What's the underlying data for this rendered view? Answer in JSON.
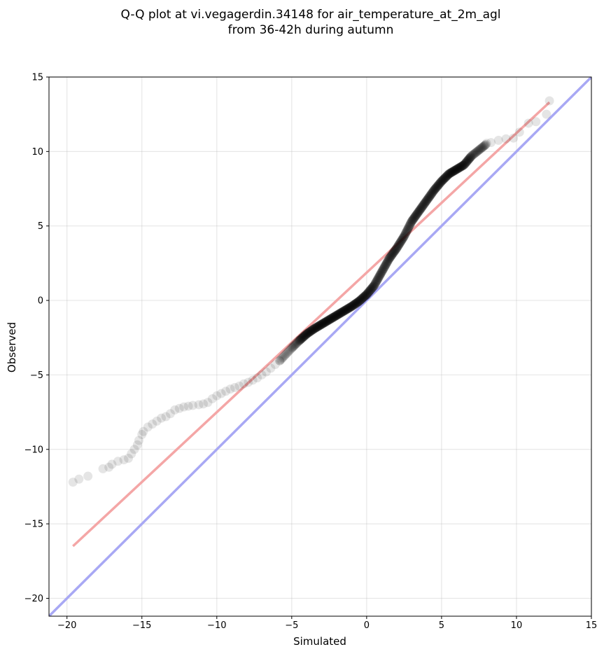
{
  "chart_data": {
    "type": "scatter",
    "title_line1": "Q-Q plot at vi.vegagerdin.34148 for air_temperature_at_2m_agl",
    "title_line2": "from 36-42h during autumn",
    "xlabel": "Simulated",
    "ylabel": "Observed",
    "xlim": [
      -21.2,
      15
    ],
    "ylim": [
      -21.2,
      15
    ],
    "xticks": [
      -20,
      -15,
      -10,
      -5,
      0,
      5,
      10,
      15
    ],
    "yticks": [
      -20,
      -15,
      -10,
      -5,
      0,
      5,
      10,
      15
    ],
    "xtick_labels": [
      "−20",
      "−15",
      "−10",
      "−5",
      "0",
      "5",
      "10",
      "15"
    ],
    "ytick_labels": [
      "−20",
      "−15",
      "−10",
      "−5",
      "0",
      "5",
      "10",
      "15"
    ],
    "grid": true,
    "fit_line": {
      "color": "#f4a6a6",
      "x": [
        -19.6,
        12.2
      ],
      "y": [
        -16.5,
        13.3
      ]
    },
    "identity_line": {
      "color": "#a8a8f4",
      "x": [
        -21.2,
        15
      ],
      "y": [
        -21.2,
        15
      ]
    },
    "point_color": "#000000",
    "tail_points": [
      [
        -19.6,
        -12.2
      ],
      [
        -19.2,
        -12.0
      ],
      [
        -18.6,
        -11.8
      ],
      [
        -17.6,
        -11.3
      ],
      [
        -17.2,
        -11.2
      ],
      [
        -17.0,
        -11.0
      ],
      [
        -16.6,
        -10.8
      ],
      [
        -16.2,
        -10.7
      ],
      [
        -15.9,
        -10.6
      ],
      [
        -15.7,
        -10.3
      ],
      [
        -15.5,
        -10.0
      ],
      [
        -15.3,
        -9.7
      ],
      [
        -15.2,
        -9.4
      ],
      [
        -15.0,
        -9.0
      ],
      [
        -14.9,
        -8.8
      ],
      [
        -14.6,
        -8.5
      ],
      [
        -14.3,
        -8.3
      ],
      [
        -14.0,
        -8.1
      ],
      [
        -13.7,
        -7.9
      ],
      [
        -13.4,
        -7.8
      ],
      [
        -13.1,
        -7.6
      ],
      [
        -12.8,
        -7.35
      ],
      [
        -12.5,
        -7.25
      ],
      [
        -12.2,
        -7.15
      ],
      [
        -11.9,
        -7.1
      ],
      [
        -11.6,
        -7.05
      ],
      [
        -11.2,
        -7.0
      ],
      [
        -10.9,
        -6.95
      ],
      [
        -10.6,
        -6.85
      ],
      [
        -10.3,
        -6.6
      ],
      [
        -10.0,
        -6.4
      ],
      [
        -9.7,
        -6.25
      ],
      [
        -9.4,
        -6.1
      ],
      [
        -9.1,
        -5.95
      ],
      [
        -8.8,
        -5.85
      ],
      [
        -8.5,
        -5.75
      ],
      [
        -8.2,
        -5.6
      ],
      [
        -7.9,
        -5.5
      ],
      [
        -7.6,
        -5.35
      ],
      [
        -7.3,
        -5.2
      ],
      [
        -7.0,
        -5.0
      ],
      [
        -6.7,
        -4.8
      ],
      [
        -6.4,
        -4.55
      ],
      [
        -6.1,
        -4.3
      ],
      [
        -5.8,
        -4.05
      ],
      [
        8.0,
        10.55
      ],
      [
        8.3,
        10.6
      ],
      [
        8.8,
        10.75
      ],
      [
        9.3,
        10.85
      ],
      [
        9.8,
        10.9
      ],
      [
        10.2,
        11.3
      ],
      [
        10.8,
        11.9
      ],
      [
        11.3,
        12.0
      ],
      [
        12.0,
        12.5
      ],
      [
        12.2,
        13.4
      ]
    ],
    "body_curve": [
      [
        -5.8,
        -4.05
      ],
      [
        -5.0,
        -3.2
      ],
      [
        -4.5,
        -2.7
      ],
      [
        -4.0,
        -2.25
      ],
      [
        -3.5,
        -1.9
      ],
      [
        -3.0,
        -1.6
      ],
      [
        -2.5,
        -1.3
      ],
      [
        -2.0,
        -1.0
      ],
      [
        -1.5,
        -0.7
      ],
      [
        -1.0,
        -0.4
      ],
      [
        -0.5,
        -0.05
      ],
      [
        0.0,
        0.4
      ],
      [
        0.5,
        1.0
      ],
      [
        1.0,
        1.9
      ],
      [
        1.5,
        2.8
      ],
      [
        2.0,
        3.5
      ],
      [
        2.5,
        4.3
      ],
      [
        3.0,
        5.3
      ],
      [
        3.5,
        6.0
      ],
      [
        4.0,
        6.7
      ],
      [
        4.5,
        7.4
      ],
      [
        5.0,
        8.0
      ],
      [
        5.5,
        8.5
      ],
      [
        6.0,
        8.8
      ],
      [
        6.5,
        9.1
      ],
      [
        7.0,
        9.7
      ],
      [
        7.5,
        10.1
      ],
      [
        8.0,
        10.5
      ]
    ]
  }
}
